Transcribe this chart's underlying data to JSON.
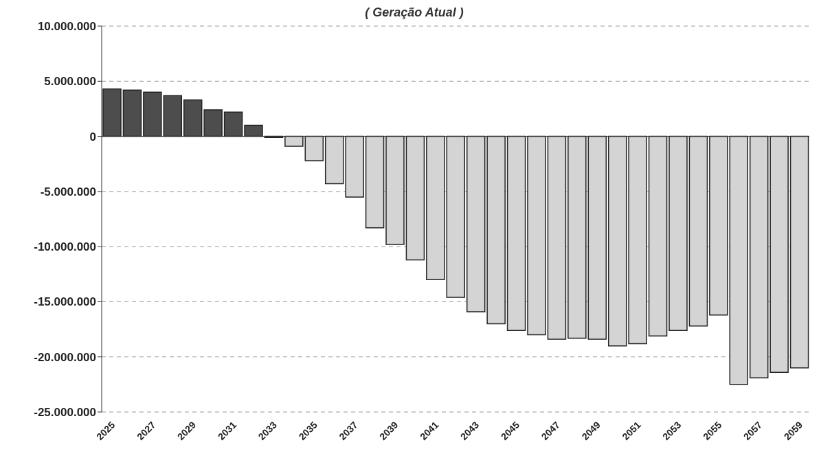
{
  "chart_data": {
    "type": "bar",
    "title": "( Geração Atual )",
    "categories": [
      "2025",
      null,
      "2027",
      null,
      "2029",
      null,
      "2031",
      null,
      "2033",
      null,
      "2035",
      null,
      "2037",
      null,
      "2039",
      null,
      "2041",
      null,
      "2043",
      null,
      "2045",
      null,
      "2047",
      null,
      "2049",
      null,
      "2051",
      null,
      "2053",
      null,
      "2055",
      null,
      "2057",
      null,
      "2059"
    ],
    "values": [
      4300000.0,
      4200000.0,
      4000000.0,
      3700000.0,
      3300000.0,
      2400000.0,
      2200000.0,
      1000000.0,
      -100000.0,
      -900000.0,
      -2200000.0,
      -4300000.0,
      -5500000.0,
      -8300000.0,
      -9800000.0,
      -11200000.0,
      -13000000.0,
      -14600000.0,
      -15900000.0,
      -17000000.0,
      -17600000.0,
      -18000000.0,
      -18400000.0,
      -18300000.0,
      -18400000.0,
      -19000000.0,
      -18800000.0,
      -18100000.0,
      -17600000.0,
      -17200000.0,
      -16200000.0,
      -22500000.0,
      -21900000.0,
      -21400000.0,
      -21000000.0
    ],
    "colors": [
      "#4d4d4d",
      "#4d4d4d",
      "#4d4d4d",
      "#4d4d4d",
      "#4d4d4d",
      "#4d4d4d",
      "#4d4d4d",
      "#4d4d4d",
      "#4d4d4d",
      "#d4d4d4",
      "#d4d4d4",
      "#d4d4d4",
      "#d4d4d4",
      "#d4d4d4",
      "#d4d4d4",
      "#d4d4d4",
      "#d4d4d4",
      "#d4d4d4",
      "#d4d4d4",
      "#d4d4d4",
      "#d4d4d4",
      "#d4d4d4",
      "#d4d4d4",
      "#d4d4d4",
      "#d4d4d4",
      "#d4d4d4",
      "#d4d4d4",
      "#d4d4d4",
      "#d4d4d4",
      "#d4d4d4",
      "#d4d4d4",
      "#d4d4d4",
      "#d4d4d4",
      "#d4d4d4",
      "#d4d4d4"
    ],
    "ylim": [
      -25000000,
      10000000
    ],
    "yticks": [
      {
        "value": -25000000,
        "label": "-25.000.000"
      },
      {
        "value": -20000000,
        "label": "-20.000.000"
      },
      {
        "value": -15000000,
        "label": "-15.000.000"
      },
      {
        "value": -10000000,
        "label": "-10.000.000"
      },
      {
        "value": -5000000,
        "label": "-5.000.000"
      },
      {
        "value": 0,
        "label": "0"
      },
      {
        "value": 5000000,
        "label": "5.000.000"
      },
      {
        "value": 10000000,
        "label": "10.000.000"
      }
    ],
    "grid": "y"
  }
}
